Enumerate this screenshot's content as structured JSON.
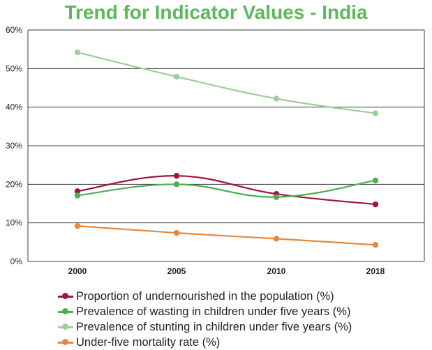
{
  "chart_data": {
    "type": "line",
    "title": "Trend for Indicator Values - India",
    "categories": [
      "2000",
      "2005",
      "2010",
      "2018"
    ],
    "ylim": [
      0,
      60
    ],
    "yticks": [
      0,
      10,
      20,
      30,
      40,
      50,
      60
    ],
    "ytick_labels": [
      "0%",
      "10%",
      "20%",
      "30%",
      "40%",
      "50%",
      "60%"
    ],
    "xlabel": "",
    "ylabel": "",
    "grid": true,
    "legend_position": "bottom",
    "series": [
      {
        "name": "Proportion of undernourished in the population (%)",
        "color": "#a0153e",
        "values": [
          18.2,
          22.2,
          17.5,
          14.8
        ]
      },
      {
        "name": "Prevalence of wasting in children under five years (%)",
        "color": "#4caf50",
        "values": [
          17.1,
          20.0,
          16.7,
          21.0
        ]
      },
      {
        "name": "Prevalence of stunting in children under five years (%)",
        "color": "#9ccf9a",
        "values": [
          54.2,
          47.9,
          42.2,
          38.4
        ]
      },
      {
        "name": "Under-five mortality rate (%)",
        "color": "#e8873a",
        "values": [
          9.2,
          7.4,
          5.9,
          4.3
        ]
      }
    ]
  }
}
